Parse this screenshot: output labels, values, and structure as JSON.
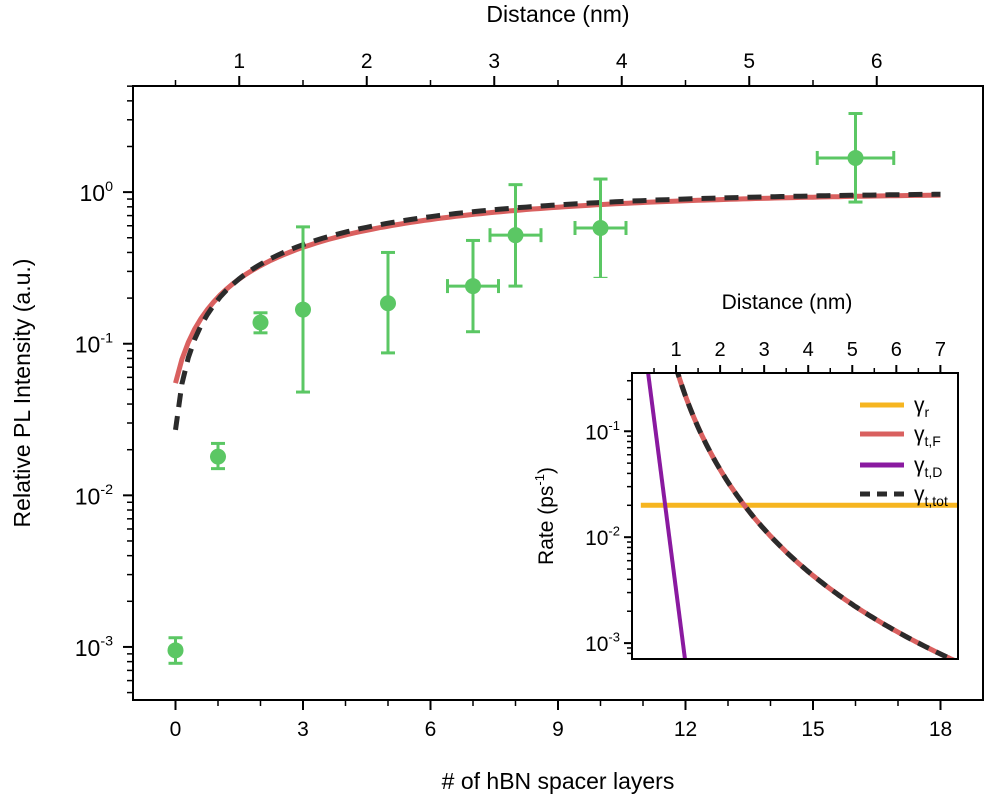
{
  "chart_data": {
    "main": {
      "type": "scatter",
      "xlabel": "# of hBN spacer layers",
      "ylabel": "Relative PL Intensity (a.u.)",
      "top_xlabel": "Distance (nm)",
      "xlim": [
        -1,
        19
      ],
      "ylim_log10": [
        -3.35,
        0.7
      ],
      "x_ticks": [
        0,
        3,
        6,
        9,
        12,
        15,
        18
      ],
      "x_tick_labels": [
        "0",
        "3",
        "6",
        "9",
        "12",
        "15",
        "18"
      ],
      "top_ticks_layers": [
        1.5,
        4.5,
        7.5,
        10.5,
        13.5,
        16.5
      ],
      "top_tick_labels": [
        "1",
        "2",
        "3",
        "4",
        "5",
        "6"
      ],
      "y_tick_exponents": [
        0,
        -1,
        -2,
        -3
      ],
      "y_tick_labels": [
        {
          "base": "10",
          "exp": "0"
        },
        {
          "base": "10",
          "exp": "-1"
        },
        {
          "base": "10",
          "exp": "-2"
        },
        {
          "base": "10",
          "exp": "-3"
        }
      ],
      "data_color": "#5bc764",
      "points": [
        {
          "x": 0,
          "y": 0.00095,
          "ylo": 0.00078,
          "yhi": 0.00115,
          "xerr": 0
        },
        {
          "x": 1,
          "y": 0.018,
          "ylo": 0.015,
          "yhi": 0.022,
          "xerr": 0
        },
        {
          "x": 2,
          "y": 0.138,
          "ylo": 0.118,
          "yhi": 0.16,
          "xerr": 0
        },
        {
          "x": 3,
          "y": 0.168,
          "ylo": 0.048,
          "yhi": 0.59,
          "xerr": 0
        },
        {
          "x": 5,
          "y": 0.185,
          "ylo": 0.087,
          "yhi": 0.4,
          "xerr": 0
        },
        {
          "x": 7,
          "y": 0.24,
          "ylo": 0.12,
          "yhi": 0.48,
          "xerr": 0.6
        },
        {
          "x": 8,
          "y": 0.52,
          "ylo": 0.24,
          "yhi": 1.12,
          "xerr": 0.6
        },
        {
          "x": 10,
          "y": 0.58,
          "ylo": 0.27,
          "yhi": 1.22,
          "xerr": 0.6
        },
        {
          "x": 16,
          "y": 1.68,
          "ylo": 0.86,
          "yhi": 3.3,
          "xerr": 0.9
        }
      ],
      "series": [
        {
          "name": "fit_F",
          "color": "#d9605f",
          "dash": "solid",
          "x0": 0,
          "x1": 18,
          "y0": 0.055,
          "yinf": 1.0,
          "k": 0.17
        },
        {
          "name": "fit_tot",
          "color": "#2b2b2b",
          "dash": "dashed",
          "x0": 0,
          "x1": 18,
          "y0": 0.027,
          "yinf": 1.0,
          "k": 0.19
        }
      ]
    },
    "inset": {
      "type": "line",
      "xlabel": "Distance (nm)",
      "ylabel": "Rate (ps",
      "ylabel_exp": "-1",
      "ylabel_close": ")",
      "xlim": [
        0.0,
        7.4
      ],
      "ylim_log10": [
        -3.15,
        -0.45
      ],
      "x_ticks": [
        1,
        2,
        3,
        4,
        5,
        6,
        7
      ],
      "x_tick_labels": [
        "1",
        "2",
        "3",
        "4",
        "5",
        "6",
        "7"
      ],
      "y_tick_exponents": [
        -1,
        -2,
        -3
      ],
      "y_tick_labels": [
        {
          "base": "10",
          "exp": "-1"
        },
        {
          "base": "10",
          "exp": "-2"
        },
        {
          "base": "10",
          "exp": "-3"
        }
      ],
      "legend_position": "top-right",
      "series": [
        {
          "name": "γ_r",
          "label_main": "γ",
          "label_sub": "r",
          "color": "#f6b520",
          "dash": "solid",
          "kind": "const",
          "value": 0.02,
          "x0": 0.2,
          "x1": 7.4
        },
        {
          "name": "γ_t,F",
          "label_main": "γ",
          "label_sub": "t,F",
          "color": "#d9605f",
          "dash": "solid",
          "kind": "power",
          "A": 0.4,
          "p": 3.2,
          "x0": 0.6,
          "x1": 7.4
        },
        {
          "name": "γ_t,D",
          "label_main": "γ",
          "label_sub": "t,D",
          "color": "#8a1aa0",
          "dash": "solid",
          "kind": "exp",
          "points": [
            [
              0.35,
              0.4
            ],
            [
              1.2,
              0.00072
            ]
          ]
        },
        {
          "name": "γ_t,tot",
          "label_main": "γ",
          "label_sub": "t,tot",
          "color": "#2b2b2b",
          "dash": "dashed",
          "kind": "power_plus",
          "A": 0.4,
          "p": 3.2,
          "x0": 0.3,
          "x1": 7.4
        }
      ]
    }
  }
}
